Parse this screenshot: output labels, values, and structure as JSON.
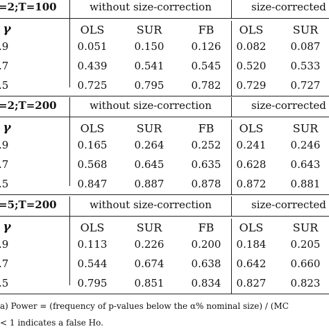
{
  "panels": [
    {
      "label": "=2;T=100",
      "group1": "without size-correction",
      "group2": "size-corrected",
      "gamma": "γ",
      "columns": [
        "OLS",
        "SUR",
        "FB",
        "OLS",
        "SUR"
      ],
      "rows": [
        [
          ".9",
          "0.051",
          "0.150",
          "0.126",
          "0.082",
          "0.087"
        ],
        [
          ".7",
          "0.439",
          "0.541",
          "0.545",
          "0.520",
          "0.533"
        ],
        [
          ".5",
          "0.725",
          "0.795",
          "0.782",
          "0.729",
          "0.727"
        ]
      ]
    },
    {
      "label": "=2;T=200",
      "group1": "without size-correction",
      "group2": "size-corrected",
      "gamma": "γ",
      "columns": [
        "OLS",
        "SUR",
        "FB",
        "OLS",
        "SUR"
      ],
      "rows": [
        [
          ".9",
          "0.165",
          "0.264",
          "0.252",
          "0.241",
          "0.246"
        ],
        [
          ".7",
          "0.568",
          "0.645",
          "0.635",
          "0.628",
          "0.643"
        ],
        [
          ".5",
          "0.847",
          "0.887",
          "0.878",
          "0.872",
          "0.881"
        ]
      ]
    },
    {
      "label": "=5;T=200",
      "group1": "without size-correction",
      "group2": "size-corrected",
      "gamma": "γ",
      "columns": [
        "OLS",
        "SUR",
        "FB",
        "OLS",
        "SUR"
      ],
      "rows": [
        [
          ".9",
          "0.113",
          "0.226",
          "0.200",
          "0.184",
          "0.205"
        ],
        [
          ".7",
          "0.544",
          "0.674",
          "0.638",
          "0.642",
          "0.660"
        ],
        [
          ".5",
          "0.795",
          "0.851",
          "0.834",
          "0.827",
          "0.823"
        ]
      ]
    }
  ],
  "footnote": [
    "a) Power = (frequency of p-values below the α% nominal size) / (MC",
    "< 1 indicates a false Ho."
  ]
}
